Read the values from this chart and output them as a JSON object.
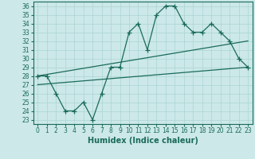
{
  "title": "",
  "xlabel": "Humidex (Indice chaleur)",
  "ylabel": "",
  "bg_color": "#cce8e8",
  "line_color": "#1a6b5a",
  "xlim": [
    -0.5,
    23.5
  ],
  "ylim": [
    22.5,
    36.5
  ],
  "yticks": [
    23,
    24,
    25,
    26,
    27,
    28,
    29,
    30,
    31,
    32,
    33,
    34,
    35,
    36
  ],
  "xticks": [
    0,
    1,
    2,
    3,
    4,
    5,
    6,
    7,
    8,
    9,
    10,
    11,
    12,
    13,
    14,
    15,
    16,
    17,
    18,
    19,
    20,
    21,
    22,
    23
  ],
  "main_line_x": [
    0,
    1,
    2,
    3,
    4,
    5,
    6,
    7,
    8,
    9,
    10,
    11,
    12,
    13,
    14,
    15,
    16,
    17,
    18,
    19,
    20,
    21,
    22,
    23
  ],
  "main_line_y": [
    28,
    28,
    26,
    24,
    24,
    25,
    23,
    26,
    29,
    29,
    33,
    34,
    31,
    35,
    36,
    36,
    34,
    33,
    33,
    34,
    33,
    32,
    30,
    29
  ],
  "upper_line_x": [
    0,
    23
  ],
  "upper_line_y": [
    28,
    32
  ],
  "lower_line_x": [
    0,
    23
  ],
  "lower_line_y": [
    27,
    29
  ],
  "marker": "+",
  "markersize": 4,
  "linewidth": 0.9,
  "grid_color": "#aad4d4",
  "tick_fontsize": 5.5,
  "label_fontsize": 7.0
}
